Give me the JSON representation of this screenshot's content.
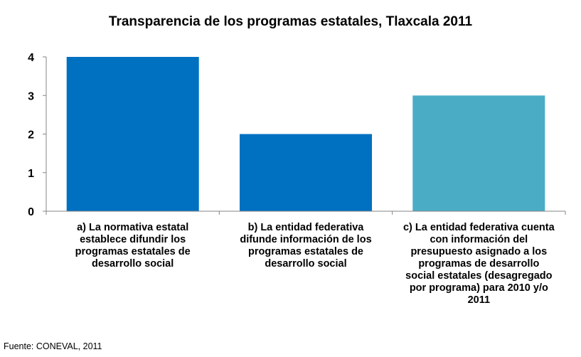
{
  "chart_data": {
    "type": "bar",
    "title": "Transparencia de los programas estatales, Tlaxcala 2011",
    "categories": [
      "a) La normativa estatal establece difundir los programas estatales de desarrollo social",
      "b) La entidad federativa difunde información de los programas estatales de desarrollo social",
      "c) La entidad federativa cuenta con información del presupuesto asignado a los programas de desarrollo social estatales (desagregado por programa) para 2010 y/o 2011"
    ],
    "values": [
      4,
      2,
      3
    ],
    "colors": [
      "#0070C0",
      "#0070C0",
      "#4BACC6"
    ],
    "ylim": [
      0,
      4
    ],
    "yticks": [
      "0",
      "1",
      "2",
      "3",
      "4"
    ],
    "grid": false,
    "legend": "none"
  },
  "source": "Fuente: CONEVAL, 2011"
}
